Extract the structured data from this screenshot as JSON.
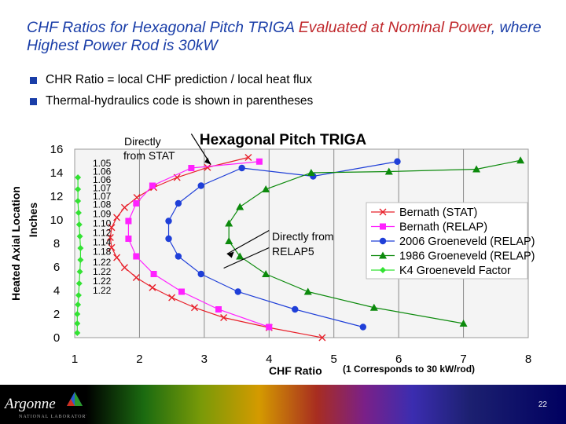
{
  "slide": {
    "title_part1": "CHF Ratios for Hexagonal Pitch TRIGA ",
    "title_part2": "Evaluated at Nominal Power",
    "title_part3": ", where Highest Power Rod is 30kW",
    "bullets": [
      "CHR Ratio = local CHF prediction / local heat flux",
      "Thermal-hydraulics code is shown in parentheses"
    ],
    "footer": {
      "logo_text": "Argonne",
      "logo_sub": "NATIONAL LABORATORY",
      "page_number": "22"
    }
  },
  "chart_data": {
    "type": "line",
    "title": "Hexagonal Pitch TRIGA",
    "xlabel": "CHF Ratio",
    "xlabel_note": "(1 Corresponds to 30 kW/rod)",
    "ylabel": [
      "Heated Axial Location",
      "Inches"
    ],
    "xlim": [
      1,
      8
    ],
    "ylim": [
      0,
      16
    ],
    "xticks": [
      1,
      2,
      3,
      4,
      5,
      6,
      7,
      8
    ],
    "yticks": [
      0,
      2,
      4,
      6,
      8,
      10,
      12,
      14,
      16
    ],
    "grid": "vertical",
    "legend_position": "right",
    "colors": {
      "stat": "#e8202a",
      "relap": "#ff21ff",
      "g2006": "#1f3fd8",
      "g1986": "#0c8a0c",
      "k4": "#33e233"
    },
    "series": [
      {
        "name": "Bernath (STAT)",
        "marker": "x",
        "color": "#e8202a",
        "x": [
          4.82,
          4.0,
          3.3,
          2.85,
          2.5,
          2.2,
          1.95,
          1.77,
          1.65,
          1.57,
          1.55,
          1.57,
          1.65,
          1.77,
          1.96,
          2.22,
          2.58,
          3.05,
          3.68
        ],
        "y": [
          0.0,
          0.85,
          1.7,
          2.55,
          3.4,
          4.25,
          5.1,
          5.95,
          6.8,
          7.65,
          8.5,
          9.35,
          10.2,
          11.05,
          11.9,
          12.75,
          13.6,
          14.45,
          15.3
        ]
      },
      {
        "name": "Bernath (RELAP)",
        "marker": "square",
        "color": "#ff21ff",
        "x": [
          4.0,
          3.22,
          2.65,
          2.22,
          1.95,
          1.83,
          1.83,
          1.95,
          2.2,
          2.8,
          3.85
        ],
        "y": [
          0.9,
          2.4,
          3.9,
          5.4,
          6.9,
          8.4,
          9.9,
          11.4,
          12.9,
          14.4,
          14.95
        ]
      },
      {
        "name": "2006 Groeneveld (RELAP)",
        "marker": "circle",
        "color": "#1f3fd8",
        "x": [
          5.45,
          4.4,
          3.52,
          2.95,
          2.6,
          2.45,
          2.45,
          2.6,
          2.95,
          3.58,
          4.68,
          5.98
        ],
        "y": [
          0.9,
          2.4,
          3.9,
          5.4,
          6.9,
          8.4,
          9.9,
          11.4,
          12.9,
          14.4,
          13.7,
          14.95
        ]
      },
      {
        "name": "1986 Groeneveld (RELAP)",
        "marker": "triangle",
        "color": "#0c8a0c",
        "x": [
          7.0,
          5.62,
          4.6,
          3.95,
          3.55,
          3.38,
          3.38,
          3.55,
          3.95,
          4.65,
          5.85,
          7.2,
          7.88
        ],
        "y": [
          1.2,
          2.55,
          3.9,
          5.4,
          6.9,
          8.2,
          9.7,
          11.1,
          12.6,
          14.0,
          14.1,
          14.3,
          15.05
        ]
      },
      {
        "name": "K4 Groeneveld Factor",
        "marker": "diamond",
        "color": "#33e233",
        "x": [
          1.04,
          1.04,
          1.04,
          1.05,
          1.06,
          1.07,
          1.08,
          1.09,
          1.09,
          1.08,
          1.07,
          1.06,
          1.05,
          1.05,
          1.05
        ],
        "y": [
          0.4,
          1.2,
          2.0,
          2.8,
          3.6,
          4.6,
          5.6,
          6.6,
          7.6,
          8.6,
          9.6,
          10.6,
          11.6,
          12.6,
          13.6
        ]
      }
    ],
    "k4_labels": {
      "values": [
        "1.05",
        "1.06",
        "1.06",
        "1.07",
        "1.07",
        "1.08",
        "1.09",
        "1.10",
        "1.12",
        "1.14",
        "1.18",
        "1.22",
        "1.22",
        "1.22",
        "1.22"
      ],
      "y": [
        14.8,
        14.1,
        13.4,
        12.7,
        12.0,
        11.3,
        10.5,
        9.7,
        8.9,
        8.1,
        7.3,
        6.4,
        5.6,
        4.8,
        4.0
      ]
    },
    "annotations": {
      "stat": {
        "text": [
          "Directly",
          "from STAT"
        ],
        "anchor_x": 2.8,
        "anchor_y": 17.3,
        "target_x": 3.1,
        "target_y": 14.7
      },
      "relap": {
        "text": [
          "Directly from",
          "RELAP5"
        ],
        "anchor_x": 4.0,
        "anchor_y": 9.1,
        "target_x": 3.35,
        "target_y": 7.1
      }
    }
  }
}
